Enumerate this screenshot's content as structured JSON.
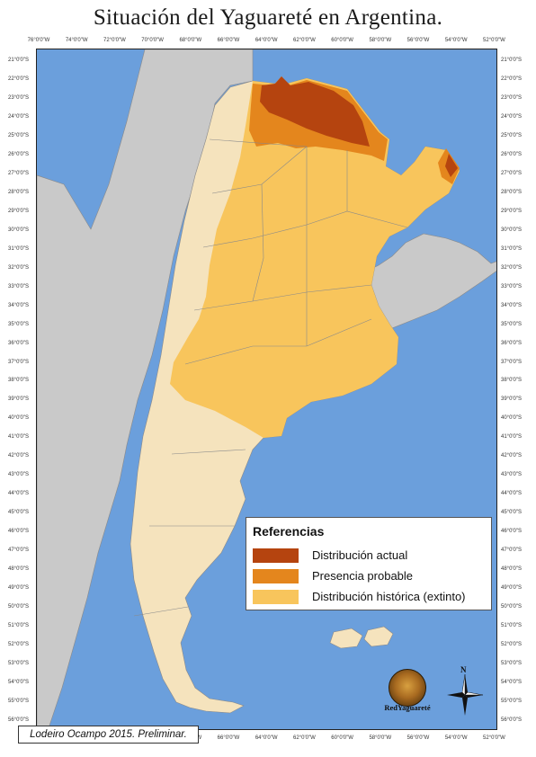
{
  "title": "Situación del Yaguareté en Argentina.",
  "longitude_ticks": [
    "76°0'0\"W",
    "74°0'0\"W",
    "72°0'0\"W",
    "70°0'0\"W",
    "68°0'0\"W",
    "66°0'0\"W",
    "64°0'0\"W",
    "62°0'0\"W",
    "60°0'0\"W",
    "58°0'0\"W",
    "56°0'0\"W",
    "54°0'0\"W",
    "52°0'0\"W"
  ],
  "latitude_ticks": [
    "21°0'0\"S",
    "22°0'0\"S",
    "23°0'0\"S",
    "24°0'0\"S",
    "25°0'0\"S",
    "26°0'0\"S",
    "27°0'0\"S",
    "28°0'0\"S",
    "29°0'0\"S",
    "30°0'0\"S",
    "31°0'0\"S",
    "32°0'0\"S",
    "33°0'0\"S",
    "34°0'0\"S",
    "35°0'0\"S",
    "36°0'0\"S",
    "37°0'0\"S",
    "38°0'0\"S",
    "39°0'0\"S",
    "40°0'0\"S",
    "41°0'0\"S",
    "42°0'0\"S",
    "43°0'0\"S",
    "44°0'0\"S",
    "45°0'0\"S",
    "46°0'0\"S",
    "47°0'0\"S",
    "48°0'0\"S",
    "49°0'0\"S",
    "50°0'0\"S",
    "51°0'0\"S",
    "52°0'0\"S",
    "53°0'0\"S",
    "54°0'0\"S",
    "55°0'0\"S",
    "56°0'0\"S"
  ],
  "legend": {
    "title": "Referencias",
    "items": [
      {
        "label": "Distribución actual",
        "color": "#b5440f"
      },
      {
        "label": "Presencia probable",
        "color": "#e4861d"
      },
      {
        "label": "Distribución histórica (extinto)",
        "color": "#f8c55c"
      }
    ]
  },
  "colors": {
    "ocean": "#6b9fdc",
    "neighbor_land": "#c9c9c9",
    "argentina_land": "#f5e3bd",
    "border_line": "#8a8a8a"
  },
  "logo": {
    "text": "RedYaguareté",
    "icon": "jaguar-face-icon"
  },
  "north_arrow": {
    "label": "N",
    "icon": "compass-rose-icon"
  },
  "credit": "Lodeiro Ocampo 2015. Preliminar."
}
